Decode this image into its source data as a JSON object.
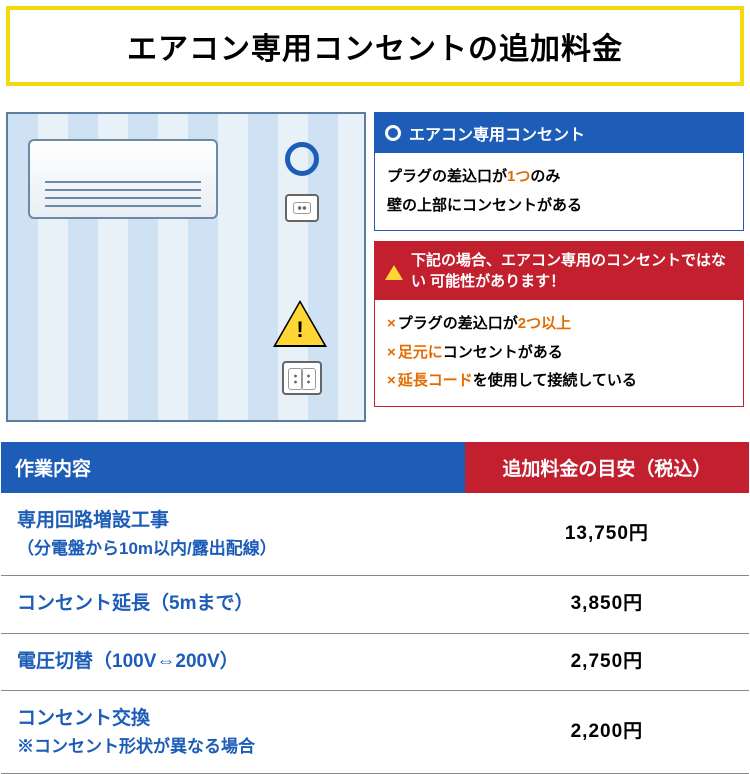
{
  "colors": {
    "title_border": "#f4d90f",
    "title_text": "#000000",
    "blue": "#1d5db8",
    "red": "#c21f2f",
    "orange": "#e36c00",
    "table_head_work_bg": "#1d5db8",
    "table_head_price_bg": "#c21f2f",
    "row_border": "#888888"
  },
  "title": "エアコン専用コンセントの追加料金",
  "good_box": {
    "heading": "エアコン専用コンセント",
    "line1_a": "プラグの差込口が",
    "line1_b": "1つ",
    "line1_c": "のみ",
    "line2": "壁の上部にコンセントがある"
  },
  "bad_box": {
    "heading": "下記の場合、エアコン専用のコンセントではない 可能性があります！",
    "items": [
      {
        "pre": "プラグの差込口が",
        "em": "2つ以上",
        "post": ""
      },
      {
        "pre": "",
        "em": "足元に",
        "post": "コンセントがある"
      },
      {
        "pre": "",
        "em": "延長コード",
        "post": "を使用して接続している"
      }
    ]
  },
  "table": {
    "head_work": "作業内容",
    "head_price": "追加料金の目安（税込）",
    "rows": [
      {
        "work": "専用回路増設工事",
        "sub": "（分電盤から10m以内/露出配線）",
        "price": "13,750円"
      },
      {
        "work": "コンセント延長（5mまで）",
        "sub": "",
        "price": "3,850円"
      },
      {
        "work": "電圧切替（100V⇔200V）",
        "sub": "",
        "price": "2,750円"
      },
      {
        "work": "コンセント交換",
        "sub": "※コンセント形状が異なる場合",
        "price": "2,200円"
      }
    ]
  }
}
